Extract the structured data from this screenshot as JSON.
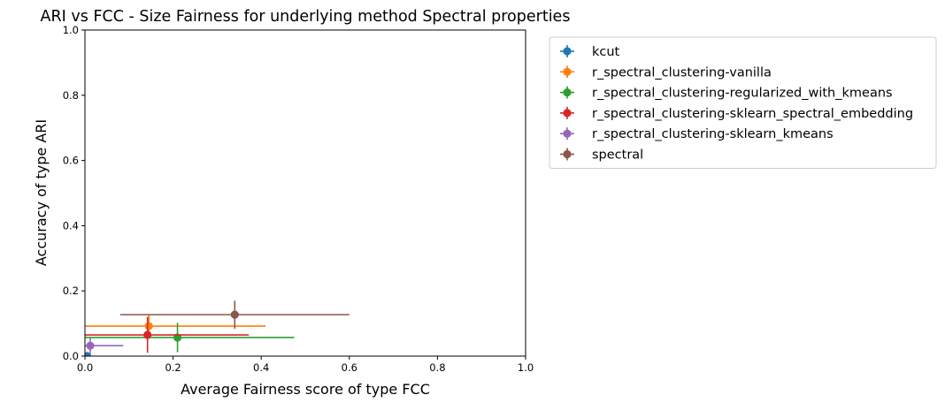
{
  "chart_data": {
    "type": "scatter",
    "title": "ARI vs FCC - Size Fairness for underlying method Spectral properties",
    "xlabel": "Average Fairness score of type FCC",
    "ylabel": "Accuracy of type ARI",
    "xlim": [
      0,
      1
    ],
    "ylim": [
      0,
      1
    ],
    "xticks": [
      "0.0",
      "0.2",
      "0.4",
      "0.6",
      "0.8",
      "1.0"
    ],
    "yticks": [
      "0.0",
      "0.2",
      "0.4",
      "0.6",
      "0.8",
      "1.0"
    ],
    "grid": false,
    "legend_position": "outside-upper-right",
    "error_bars": true,
    "series": [
      {
        "name": "kcut",
        "color": "#1f77b4",
        "x": 0.005,
        "y": 0.0,
        "xerr": 0.0,
        "yerr": 0.0
      },
      {
        "name": "r_spectral_clustering-vanilla",
        "color": "#ff7f0e",
        "x": 0.145,
        "y": 0.092,
        "xerr": 0.265,
        "yerr": 0.035
      },
      {
        "name": "r_spectral_clustering-regularized_with_kmeans",
        "color": "#2ca02c",
        "x": 0.21,
        "y": 0.057,
        "xerr": 0.265,
        "yerr": 0.045
      },
      {
        "name": "r_spectral_clustering-sklearn_spectral_embedding",
        "color": "#d62728",
        "x": 0.142,
        "y": 0.065,
        "xerr": 0.23,
        "yerr": 0.055
      },
      {
        "name": "r_spectral_clustering-sklearn_kmeans",
        "color": "#9467bd",
        "x": 0.012,
        "y": 0.032,
        "xerr": 0.075,
        "yerr": 0.025
      },
      {
        "name": "spectral",
        "color": "#8c564b",
        "x": 0.34,
        "y": 0.127,
        "xerr": 0.26,
        "yerr": 0.043
      }
    ]
  }
}
